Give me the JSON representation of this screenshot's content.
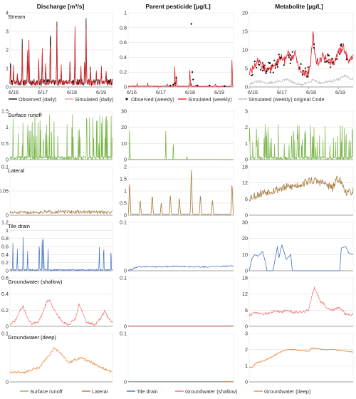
{
  "figure": {
    "column_titles": [
      "Discharge [m³/s]",
      "Parent pesticide [µg/L]",
      "Metabolite [µg/L]"
    ],
    "row_labels": [
      "Stream",
      "Surface runoff",
      "Lateral",
      "Tile drain",
      "Groundwater (shallow)",
      "Groundwater (deep)"
    ],
    "date_ticks": [
      "6/16",
      "6/17",
      "6/18",
      "6/19"
    ],
    "legend_top": {
      "observed_daily": "Observed (daily)",
      "simulated_daily": "Simulated (daily)",
      "observed_weekly": "Observed (weekly)",
      "simulated_weekly": "Simulated (weekly)",
      "simulated_original": "Simulated (weekly) original Code"
    },
    "legend_bottom": {
      "surface": "Surface runoff",
      "lateral": "Lateral",
      "tile": "Tile drain",
      "gw_shallow": "Groundwater (shallow)",
      "gw_deep": "Groundwater (deep)"
    },
    "colors": {
      "observed": "#111111",
      "simulated": "#e3262b",
      "simulated_light": "#f29c9c",
      "original": "#b8b8b8",
      "surface": "#7ab648",
      "lateral": "#a67c3d",
      "tile": "#4472c4",
      "gw_shallow": "#f26d6d",
      "gw_deep": "#ed8a3c",
      "grid": "#d9d9d9",
      "axis": "#888888"
    }
  },
  "chart_data": [
    {
      "type": "line",
      "panel": "Stream — Discharge [m³/s]",
      "ylim": [
        0,
        4
      ],
      "yticks": [
        "0",
        "1",
        "2",
        "3",
        "4"
      ],
      "series": [
        {
          "name": "Observed (daily)",
          "peaks": [
            [
              2016.52,
              1.7
            ],
            [
              2016.62,
              1.0
            ],
            [
              2016.75,
              0.7
            ],
            [
              2016.92,
              2.7
            ],
            [
              2017.1,
              1.8
            ],
            [
              2017.15,
              2.2
            ],
            [
              2017.48,
              1.5
            ],
            [
              2017.6,
              2.0
            ],
            [
              2017.72,
              1.3
            ],
            [
              2017.88,
              3.7
            ],
            [
              2018.1,
              3.6
            ],
            [
              2018.25,
              1.0
            ],
            [
              2018.55,
              1.5
            ],
            [
              2018.72,
              3.0
            ],
            [
              2018.92,
              1.0
            ],
            [
              2019.05,
              1.6
            ],
            [
              2019.1,
              3.8
            ],
            [
              2019.25,
              1.2
            ],
            [
              2019.45,
              0.8
            ],
            [
              2019.62,
              1.0
            ],
            [
              2019.78,
              0.9
            ]
          ]
        },
        {
          "name": "Simulated (daily)",
          "peaks": [
            [
              2016.52,
              1.4
            ],
            [
              2016.62,
              1.2
            ],
            [
              2016.75,
              0.9
            ],
            [
              2016.92,
              2.2
            ],
            [
              2017.1,
              2.5
            ],
            [
              2017.15,
              2.8
            ],
            [
              2017.48,
              1.6
            ],
            [
              2017.6,
              2.3
            ],
            [
              2017.72,
              1.5
            ],
            [
              2017.88,
              3.0
            ],
            [
              2018.1,
              3.3
            ],
            [
              2018.25,
              1.2
            ],
            [
              2018.55,
              1.4
            ],
            [
              2018.72,
              3.3
            ],
            [
              2018.92,
              1.2
            ],
            [
              2019.05,
              1.7
            ],
            [
              2019.1,
              3.2
            ],
            [
              2019.25,
              1.0
            ],
            [
              2019.45,
              0.9
            ],
            [
              2019.62,
              1.2
            ],
            [
              2019.78,
              1.0
            ]
          ]
        }
      ]
    },
    {
      "type": "line",
      "panel": "Stream — Parent pesticide [µg/L]",
      "ylim": [
        0,
        1
      ],
      "yticks": [
        "0",
        "0.2",
        "0.4",
        "0.6",
        "0.8",
        "1"
      ],
      "series": [
        {
          "name": "Observed (weekly)",
          "points": [
            [
              2017.9,
              0.02
            ],
            [
              2018.0,
              0.03
            ],
            [
              2018.05,
              0.05
            ],
            [
              2018.1,
              0.12
            ],
            [
              2018.6,
              0.85
            ],
            [
              2018.63,
              0.2
            ],
            [
              2018.66,
              0.1
            ],
            [
              2018.8,
              0.02
            ],
            [
              2019.2,
              0.02
            ],
            [
              2019.7,
              0.01
            ]
          ]
        },
        {
          "name": "Simulated (weekly)",
          "peaks": [
            [
              2016.8,
              0.05
            ],
            [
              2017.15,
              0.06
            ],
            [
              2017.8,
              0.05
            ],
            [
              2018.05,
              0.28
            ],
            [
              2018.1,
              0.15
            ],
            [
              2018.55,
              0.25
            ],
            [
              2018.6,
              0.05
            ],
            [
              2018.75,
              0.03
            ],
            [
              2019.4,
              0.05
            ],
            [
              2019.95,
              0.4
            ]
          ]
        },
        {
          "name": "Simulated (weekly) original Code",
          "peaks": [
            [
              2018.05,
              0.06
            ],
            [
              2018.55,
              0.05
            ],
            [
              2019.95,
              0.1
            ]
          ]
        }
      ]
    },
    {
      "type": "line",
      "panel": "Stream — Metabolite [µg/L]",
      "ylim": [
        0,
        20
      ],
      "yticks": [
        "0",
        "5",
        "10",
        "15",
        "20"
      ],
      "series": [
        {
          "name": "Observed (weekly)",
          "note": "scattered points following the simulated curve"
        },
        {
          "name": "Simulated (weekly)",
          "anchors": [
            [
              2016.5,
              4.0
            ],
            [
              2016.6,
              4.5
            ],
            [
              2016.8,
              7.0
            ],
            [
              2016.95,
              5.5
            ],
            [
              2017.05,
              4.5
            ],
            [
              2017.2,
              5.0
            ],
            [
              2017.4,
              6.0
            ],
            [
              2017.55,
              8.0
            ],
            [
              2017.7,
              7.0
            ],
            [
              2017.8,
              10.0
            ],
            [
              2017.9,
              7.5
            ],
            [
              2018.05,
              9.0
            ],
            [
              2018.15,
              5.5
            ],
            [
              2018.3,
              4.0
            ],
            [
              2018.45,
              3.5
            ],
            [
              2018.55,
              5.0
            ],
            [
              2018.65,
              15.0
            ],
            [
              2018.72,
              8.0
            ],
            [
              2018.85,
              6.0
            ],
            [
              2018.95,
              8.5
            ],
            [
              2019.05,
              8.0
            ],
            [
              2019.2,
              7.0
            ],
            [
              2019.35,
              6.5
            ],
            [
              2019.5,
              9.0
            ],
            [
              2019.65,
              11.0
            ],
            [
              2019.8,
              8.0
            ],
            [
              2019.9,
              6.5
            ],
            [
              2020.0,
              9.0
            ]
          ]
        },
        {
          "name": "Simulated (weekly) original Code",
          "anchors": [
            [
              2016.5,
              0.8
            ],
            [
              2016.8,
              1.5
            ],
            [
              2017.1,
              1.0
            ],
            [
              2017.5,
              1.5
            ],
            [
              2017.8,
              2.0
            ],
            [
              2018.0,
              1.0
            ],
            [
              2018.3,
              0.5
            ],
            [
              2018.65,
              2.0
            ],
            [
              2018.9,
              1.0
            ],
            [
              2019.2,
              1.5
            ],
            [
              2019.5,
              2.0
            ],
            [
              2019.7,
              3.0
            ],
            [
              2020.0,
              2.0
            ]
          ]
        }
      ]
    },
    {
      "type": "line",
      "panel": "Surface runoff — Discharge",
      "ylim": [
        0,
        1.5
      ],
      "yticks": [
        "0",
        "0.5",
        "1",
        "1.5"
      ]
    },
    {
      "type": "line",
      "panel": "Surface runoff — Parent pesticide",
      "ylim": [
        0,
        30
      ],
      "yticks": [
        "0",
        "10",
        "20",
        "30"
      ],
      "peaks": [
        [
          2016.55,
          20.0
        ],
        [
          2017.75,
          18.0
        ],
        [
          2018.0,
          12.0
        ],
        [
          2018.45,
          2.0
        ]
      ]
    },
    {
      "type": "line",
      "panel": "Surface runoff — Metabolite",
      "ylim": [
        0,
        3
      ],
      "yticks": [
        "0",
        "1",
        "2",
        "3"
      ]
    },
    {
      "type": "line",
      "panel": "Lateral — Discharge",
      "ylim": [
        0,
        0.1
      ],
      "yticks": [
        "0",
        "0.05",
        "0.1"
      ]
    },
    {
      "type": "line",
      "panel": "Lateral — Parent pesticide",
      "ylim": [
        0,
        2
      ],
      "yticks": [
        "0",
        "0.5",
        "1",
        "1.5",
        "2"
      ],
      "peaks": [
        [
          2016.55,
          1.3
        ],
        [
          2016.9,
          0.6
        ],
        [
          2017.3,
          0.8
        ],
        [
          2017.6,
          0.5
        ],
        [
          2017.9,
          0.8
        ],
        [
          2018.2,
          0.7
        ],
        [
          2018.6,
          1.85
        ],
        [
          2018.9,
          0.8
        ],
        [
          2019.3,
          0.6
        ],
        [
          2019.95,
          1.25
        ]
      ]
    },
    {
      "type": "line",
      "panel": "Lateral — Metabolite",
      "ylim": [
        0,
        18
      ],
      "yticks": [
        "0",
        "6",
        "12",
        "18"
      ]
    },
    {
      "type": "line",
      "panel": "Tile drain — Discharge",
      "ylim": [
        0,
        1.2
      ],
      "yticks": [
        "0",
        "0.2",
        "0.4",
        "0.6",
        "0.8",
        "1",
        "1.2"
      ]
    },
    {
      "type": "line",
      "panel": "Tile drain — Parent pesticide",
      "ylim": [
        0,
        0.1
      ],
      "yticks": [
        "0",
        "0.1"
      ]
    },
    {
      "type": "line",
      "panel": "Tile drain — Metabolite",
      "ylim": [
        0,
        30
      ],
      "yticks": [
        "0",
        "10",
        "20",
        "30"
      ],
      "anchors": [
        [
          2016.5,
          0.0
        ],
        [
          2016.6,
          8.0
        ],
        [
          2016.7,
          10.0
        ],
        [
          2016.8,
          9.0
        ],
        [
          2016.95,
          12.0
        ],
        [
          2017.05,
          5.0
        ],
        [
          2017.1,
          0.0
        ],
        [
          2017.3,
          0.0
        ],
        [
          2017.45,
          15.0
        ],
        [
          2017.5,
          8.0
        ],
        [
          2017.6,
          16.0
        ],
        [
          2017.75,
          7.0
        ],
        [
          2017.9,
          10.0
        ],
        [
          2017.95,
          0.0
        ],
        [
          2019.55,
          0.0
        ],
        [
          2019.6,
          14.0
        ],
        [
          2019.75,
          15.0
        ],
        [
          2019.85,
          11.0
        ],
        [
          2020.0,
          10.0
        ]
      ]
    },
    {
      "type": "line",
      "panel": "Groundwater (shallow) — Discharge",
      "ylim": [
        0,
        0.6
      ],
      "yticks": [
        "0",
        "0.2",
        "0.4",
        "0.6"
      ],
      "anchors": [
        [
          2016.5,
          0.02
        ],
        [
          2016.7,
          0.08
        ],
        [
          2016.85,
          0.2
        ],
        [
          2016.95,
          0.25
        ],
        [
          2017.1,
          0.1
        ],
        [
          2017.25,
          0.03
        ],
        [
          2017.45,
          0.05
        ],
        [
          2017.6,
          0.15
        ],
        [
          2017.75,
          0.3
        ],
        [
          2017.85,
          0.33
        ],
        [
          2017.95,
          0.25
        ],
        [
          2018.1,
          0.15
        ],
        [
          2018.3,
          0.05
        ],
        [
          2018.5,
          0.02
        ],
        [
          2018.75,
          0.1
        ],
        [
          2018.85,
          0.28
        ],
        [
          2018.95,
          0.2
        ],
        [
          2019.1,
          0.05
        ],
        [
          2019.4,
          0.02
        ],
        [
          2019.6,
          0.1
        ],
        [
          2019.75,
          0.2
        ],
        [
          2019.85,
          0.1
        ],
        [
          2020.0,
          0.05
        ]
      ]
    },
    {
      "type": "line",
      "panel": "Groundwater (shallow) — Parent pesticide",
      "ylim": [
        0,
        0.1
      ],
      "yticks": [
        "0",
        "0.1"
      ],
      "constant": 0.001
    },
    {
      "type": "line",
      "panel": "Groundwater (shallow) — Metabolite",
      "ylim": [
        0,
        18
      ],
      "yticks": [
        "0",
        "6",
        "12",
        "18"
      ],
      "anchors": [
        [
          2016.5,
          4.0
        ],
        [
          2016.7,
          5.0
        ],
        [
          2017.0,
          4.5
        ],
        [
          2017.3,
          5.5
        ],
        [
          2017.6,
          5.5
        ],
        [
          2017.8,
          6.0
        ],
        [
          2018.0,
          5.0
        ],
        [
          2018.3,
          5.5
        ],
        [
          2018.5,
          6.0
        ],
        [
          2018.6,
          11.0
        ],
        [
          2018.7,
          14.5
        ],
        [
          2018.8,
          12.0
        ],
        [
          2018.9,
          9.0
        ],
        [
          2019.0,
          8.5
        ],
        [
          2019.1,
          7.0
        ],
        [
          2019.3,
          6.0
        ],
        [
          2019.5,
          7.0
        ],
        [
          2019.7,
          5.0
        ],
        [
          2019.85,
          4.0
        ],
        [
          2020.0,
          4.5
        ]
      ]
    },
    {
      "type": "line",
      "panel": "Groundwater (deep) — Discharge",
      "ylim": [
        0,
        1
      ],
      "yticks": [
        "0",
        "0.1"
      ],
      "anchors": [
        [
          2016.5,
          0.02
        ],
        [
          2017.0,
          0.02
        ],
        [
          2017.5,
          0.03
        ],
        [
          2017.9,
          0.06
        ],
        [
          2018.0,
          0.07
        ],
        [
          2018.2,
          0.06
        ],
        [
          2018.5,
          0.04
        ],
        [
          2018.9,
          0.05
        ],
        [
          2019.3,
          0.04
        ],
        [
          2019.6,
          0.03
        ],
        [
          2020.0,
          0.02
        ]
      ]
    },
    {
      "type": "line",
      "panel": "Groundwater (deep) — Parent pesticide",
      "ylim": [
        0,
        0.1
      ],
      "yticks": [
        "0",
        "0.1"
      ],
      "constant": 0.001
    },
    {
      "type": "line",
      "panel": "Groundwater (deep) — Metabolite",
      "ylim": [
        0,
        3
      ],
      "yticks": [
        "0",
        "1",
        "2",
        "3"
      ],
      "anchors": [
        [
          2016.5,
          0.9
        ],
        [
          2016.6,
          0.9
        ],
        [
          2016.75,
          1.2
        ],
        [
          2017.0,
          1.3
        ],
        [
          2017.3,
          1.6
        ],
        [
          2017.6,
          1.9
        ],
        [
          2017.8,
          2.0
        ],
        [
          2018.0,
          2.0
        ],
        [
          2018.2,
          1.95
        ],
        [
          2018.5,
          1.9
        ],
        [
          2018.6,
          2.1
        ],
        [
          2018.8,
          2.05
        ],
        [
          2019.0,
          2.0
        ],
        [
          2019.3,
          2.0
        ],
        [
          2019.6,
          1.95
        ],
        [
          2020.0,
          1.85
        ]
      ]
    }
  ]
}
